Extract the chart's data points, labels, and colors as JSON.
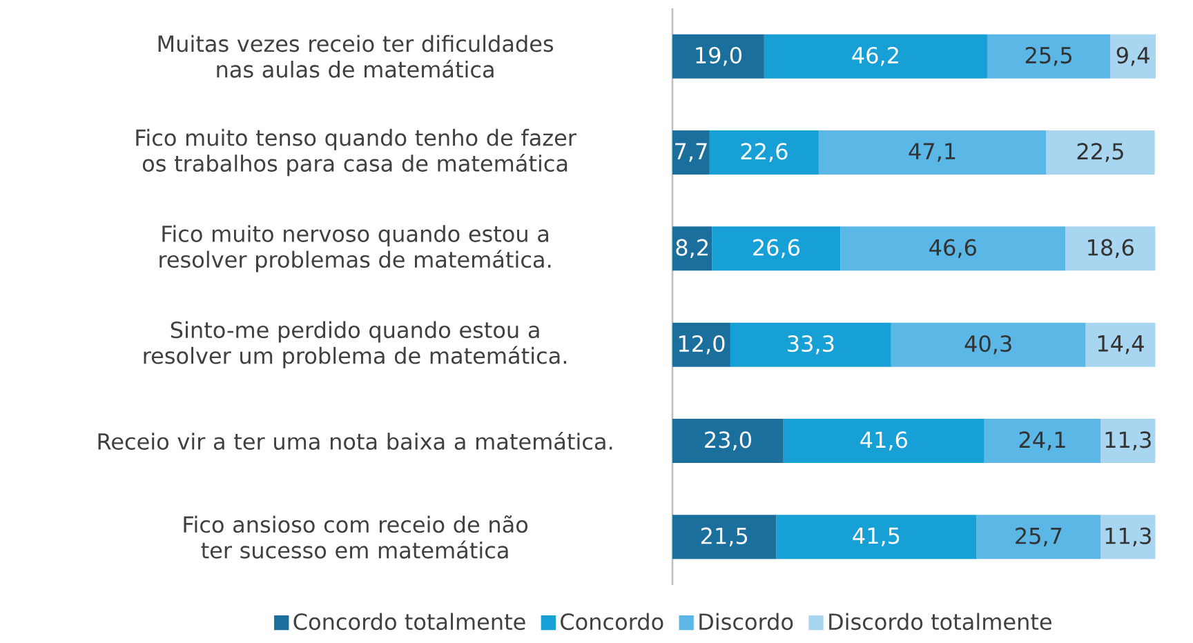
{
  "chart_data": {
    "type": "bar",
    "orientation": "horizontal",
    "stacked": true,
    "legend": "bottom",
    "categories": [
      "Muitas vezes receio ter dificuldades nas aulas de matemática",
      "Fico muito tenso quando tenho de fazer os trabalhos para casa de matemática",
      "Fico muito nervoso quando estou a resolver problemas de matemática.",
      "Sinto-me perdido quando estou a resolver um problema de matemática.",
      "Receio vir a ter uma nota baixa a matemática.",
      "Fico ansioso com receio de não ter sucesso em matemática"
    ],
    "series": [
      {
        "name": "Concordo totalmente",
        "color": "#1b6f9c",
        "values": [
          19.0,
          7.7,
          8.2,
          12.0,
          23.0,
          21.5
        ],
        "value_labels": [
          "19,0",
          "7,7",
          "8,2",
          "12,0",
          "23,0",
          "21,5"
        ]
      },
      {
        "name": "Concordo",
        "color": "#16a0d6",
        "values": [
          46.2,
          22.6,
          26.6,
          33.3,
          41.6,
          41.5
        ],
        "value_labels": [
          "46,2",
          "22,6",
          "26,6",
          "33,3",
          "41,6",
          "41,5"
        ]
      },
      {
        "name": "Discordo",
        "color": "#5bb7e6",
        "values": [
          25.5,
          47.1,
          46.6,
          40.3,
          24.1,
          25.7
        ],
        "value_labels": [
          "25,5",
          "47,1",
          "46,6",
          "40,3",
          "24,1",
          "25,7"
        ]
      },
      {
        "name": "Discordo totalmente",
        "color": "#a8d5ef",
        "values": [
          9.4,
          22.5,
          18.6,
          14.4,
          11.3,
          11.3
        ],
        "value_labels": [
          "9,4",
          "22,5",
          "18,6",
          "14,4",
          "11,3",
          "11,3"
        ]
      }
    ]
  }
}
